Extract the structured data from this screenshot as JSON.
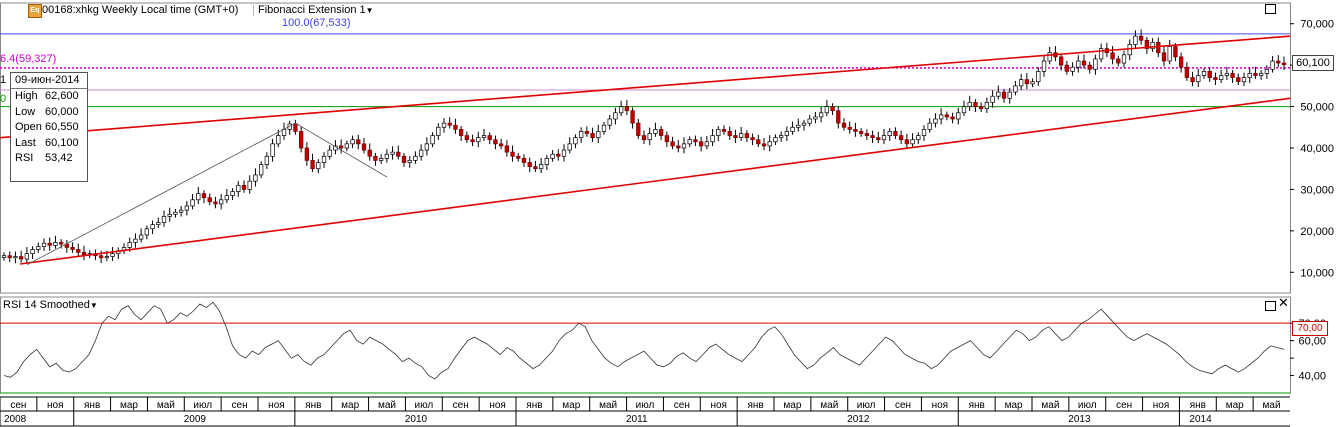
{
  "header": {
    "symbol_label": "00168:xhkg Weekly Local time (GMT+0)",
    "indicator_label": "Fibonacci Extension 1",
    "icon": "equity-icon"
  },
  "fib_labels": {
    "level_100": "100.0(67,533)",
    "level_618": "6.4(59,327)",
    "left_1": "1",
    "left_0": "0"
  },
  "info_box": {
    "date": "09-июн-2014",
    "rows": [
      {
        "label": "High",
        "value": "62,600"
      },
      {
        "label": "Low",
        "value": "60,000"
      },
      {
        "label": "Open",
        "value": "60,550"
      },
      {
        "label": "Last",
        "value": "60,100"
      },
      {
        "label": "RSI",
        "value": "53,42"
      }
    ]
  },
  "price_tag": "60,100",
  "rsi_panel": {
    "title": "RSI 14 Smoothed",
    "tag_70": "70,00"
  },
  "colors": {
    "up_candle": "#ffffff",
    "down_candle": "#c00000",
    "channel": "#e00000",
    "fib_blue": "#4a4af0",
    "fib_magenta": "#cc00cc",
    "green_line": "#009900",
    "rsi_line": "#333333"
  },
  "chart_data": [
    {
      "type": "candlestick",
      "title": "00168:xhkg Weekly",
      "ylim": [
        5000,
        75000
      ],
      "yticks": [
        10000,
        20000,
        30000,
        40000,
        50000,
        60000,
        70000
      ],
      "ytick_labels": [
        "10,000",
        "20,000",
        "30,000",
        "40,000",
        "50,000",
        "60,000",
        "70,000"
      ],
      "horizontal_lines": [
        {
          "name": "100.0(67,533)",
          "y": 67533,
          "color": "#4a4af0"
        },
        {
          "name": "6.4(59,327)",
          "y": 59327,
          "color": "#cc00cc",
          "style": "dotted"
        },
        {
          "y": 54000,
          "color": "#cc88cc"
        },
        {
          "y": 50000,
          "color": "#009900"
        }
      ],
      "close_series": {
        "start": "2008-09-01",
        "interval": "weekly",
        "values": [
          14000,
          13500,
          13800,
          13200,
          14500,
          15500,
          16200,
          17000,
          16500,
          17200,
          16800,
          16000,
          15500,
          14800,
          14200,
          14500,
          14000,
          13500,
          13800,
          14500,
          15200,
          16000,
          17200,
          18000,
          19000,
          20500,
          21500,
          22000,
          23500,
          24000,
          24500,
          25000,
          26000,
          27500,
          29000,
          28000,
          27000,
          26500,
          27500,
          28500,
          29500,
          31000,
          30000,
          32000,
          33500,
          36000,
          38000,
          41000,
          43000,
          44500,
          45800,
          44000,
          40000,
          37000,
          35000,
          36500,
          38000,
          39500,
          40500,
          40000,
          41000,
          42000,
          41000,
          39500,
          38000,
          37000,
          37500,
          38500,
          39000,
          38000,
          36500,
          37000,
          38000,
          39500,
          41000,
          43000,
          45000,
          46000,
          45500,
          44500,
          43000,
          42000,
          41500,
          42500,
          43000,
          42000,
          41000,
          40500,
          39000,
          38000,
          37500,
          36500,
          35500,
          35000,
          36000,
          37500,
          38500,
          38000,
          39500,
          41000,
          42500,
          44000,
          43500,
          42500,
          44000,
          45500,
          47000,
          48500,
          50000,
          49000,
          46000,
          43000,
          42000,
          43500,
          44500,
          43000,
          41500,
          40500,
          40000,
          41000,
          42000,
          41500,
          40500,
          41500,
          43000,
          44500,
          44000,
          43000,
          42500,
          43500,
          42500,
          42000,
          41000,
          40500,
          41500,
          42500,
          43000,
          44000,
          45000,
          45500,
          46000,
          47000,
          47500,
          48500,
          50000,
          49000,
          46000,
          45000,
          44500,
          44000,
          43500,
          43000,
          42500,
          42000,
          43000,
          44000,
          43000,
          42000,
          41000,
          42000,
          43000,
          44500,
          46000,
          47000,
          48000,
          47500,
          47000,
          48500,
          50000,
          51000,
          50000,
          49500,
          51000,
          52500,
          53500,
          52000,
          53500,
          55000,
          56500,
          55500,
          56000,
          58500,
          61000,
          63000,
          62000,
          60000,
          58500,
          59500,
          61000,
          60000,
          59000,
          61500,
          64000,
          63000,
          61500,
          60500,
          62500,
          65000,
          67000,
          66000,
          64000,
          65500,
          63000,
          61000,
          64500,
          62000,
          59500,
          57000,
          56000,
          57500,
          58500,
          57000,
          56500,
          57500,
          58000,
          57000,
          56000,
          57000,
          58000,
          57500,
          58000,
          59000,
          61000,
          60500,
          60100
        ]
      }
    },
    {
      "type": "line",
      "title": "RSI 14 Smoothed",
      "ylim": [
        30,
        85
      ],
      "yticks": [
        40,
        50,
        60,
        70
      ],
      "ytick_labels": [
        "40,00",
        "",
        "60,00",
        "70,00"
      ],
      "horizontal_lines": [
        {
          "y": 70,
          "color": "#e00000"
        },
        {
          "y": 30,
          "color": "#009900"
        }
      ],
      "series": [
        {
          "values": [
            40,
            39,
            42,
            48,
            52,
            55,
            50,
            45,
            47,
            43,
            42,
            44,
            48,
            52,
            60,
            70,
            74,
            72,
            78,
            80,
            75,
            72,
            76,
            80,
            78,
            70,
            72,
            76,
            74,
            77,
            81,
            79,
            82,
            77,
            68,
            57,
            52,
            50,
            54,
            52,
            56,
            58,
            60,
            55,
            50,
            52,
            48,
            46,
            50,
            52,
            56,
            60,
            64,
            66,
            60,
            58,
            62,
            60,
            58,
            55,
            52,
            48,
            50,
            47,
            45,
            40,
            38,
            42,
            44,
            50,
            55,
            60,
            62,
            60,
            58,
            55,
            52,
            56,
            54,
            50,
            47,
            44,
            46,
            50,
            54,
            60,
            64,
            66,
            70,
            68,
            60,
            55,
            50,
            47,
            45,
            48,
            50,
            52,
            54,
            50,
            46,
            45,
            47,
            51,
            53,
            50,
            48,
            52,
            56,
            58,
            55,
            52,
            50,
            48,
            52,
            56,
            62,
            66,
            68,
            64,
            58,
            52,
            48,
            44,
            46,
            50,
            53,
            56,
            52,
            50,
            48,
            46,
            50,
            54,
            58,
            62,
            60,
            56,
            52,
            50,
            48,
            47,
            44,
            46,
            50,
            54,
            56,
            58,
            60,
            56,
            52,
            50,
            54,
            58,
            62,
            66,
            64,
            60,
            62,
            66,
            68,
            64,
            60,
            62,
            66,
            70,
            72,
            75,
            78,
            74,
            70,
            66,
            62,
            60,
            62,
            64,
            62,
            60,
            58,
            55,
            52,
            48,
            45,
            43,
            42,
            41,
            44,
            46,
            44,
            42,
            44,
            47,
            50,
            54,
            57,
            56,
            55
          ]
        }
      ]
    }
  ],
  "xaxis": {
    "months": [
      "сен",
      "ноя",
      "янв",
      "мар",
      "май",
      "июл",
      "сен",
      "ноя",
      "янв",
      "мар",
      "май",
      "июл",
      "сен",
      "ноя",
      "янв",
      "мар",
      "май",
      "июл",
      "сен",
      "ноя",
      "янв",
      "мар",
      "май",
      "июл",
      "сен",
      "ноя",
      "янв",
      "мар",
      "май",
      "июл",
      "сен",
      "ноя",
      "янв",
      "мар",
      "май"
    ],
    "years": [
      "2008",
      "2009",
      "2010",
      "2011",
      "2012",
      "2013",
      "2014"
    ]
  }
}
